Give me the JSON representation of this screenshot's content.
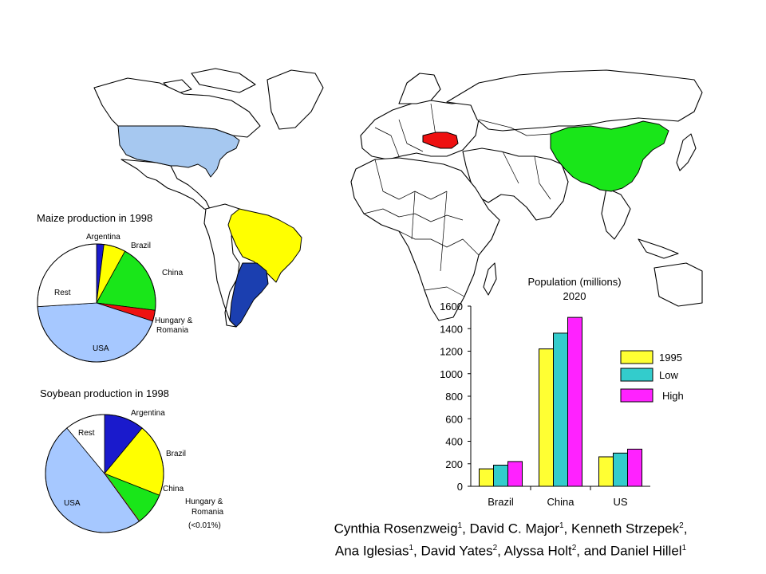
{
  "map": {
    "highlight_colors": {
      "USA": "#a6c8f0",
      "Brazil": "#ffff00",
      "Argentina": "#1b3fb0",
      "China": "#19e619",
      "Hungary & Romania": "#ee1111"
    }
  },
  "chart_data": [
    {
      "type": "pie",
      "title": "Maize production in 1998",
      "slices": [
        {
          "label": "Argentina",
          "value": 2,
          "color": "#1a1acc"
        },
        {
          "label": "Brazil",
          "value": 6,
          "color": "#ffff00"
        },
        {
          "label": "China",
          "value": 19,
          "color": "#19e619"
        },
        {
          "label": "Hungary & Romania",
          "value": 3,
          "color": "#ee1111"
        },
        {
          "label": "USA",
          "value": 44,
          "color": "#a6c8ff"
        },
        {
          "label": "Rest",
          "value": 26,
          "color": "#ffffff"
        }
      ]
    },
    {
      "type": "pie",
      "title": "Soybean production in 1998",
      "slices": [
        {
          "label": "Argentina",
          "value": 11,
          "color": "#1a1acc"
        },
        {
          "label": "Brazil",
          "value": 20,
          "color": "#ffff00"
        },
        {
          "label": "China",
          "value": 9,
          "color": "#19e619"
        },
        {
          "label": "Hungary & Romania (<0.01%)",
          "value": 0,
          "color": "#ee1111"
        },
        {
          "label": "USA",
          "value": 49,
          "color": "#a6c8ff"
        },
        {
          "label": "Rest",
          "value": 11,
          "color": "#ffffff"
        }
      ]
    },
    {
      "type": "bar",
      "title": "Population (millions)",
      "subtitle": "2020",
      "categories": [
        "Brazil",
        "China",
        "US"
      ],
      "ylim": [
        0,
        1600
      ],
      "yticks": [
        0,
        200,
        400,
        600,
        800,
        1000,
        1200,
        1400,
        1600
      ],
      "series": [
        {
          "name": "1995",
          "values": [
            155,
            1220,
            262
          ],
          "color": "#ffff33"
        },
        {
          "name": "Low",
          "values": [
            188,
            1360,
            295
          ],
          "color": "#33cccc"
        },
        {
          "name": "High",
          "values": [
            220,
            1500,
            330
          ],
          "color": "#ff22ff"
        }
      ],
      "legend_position": "right"
    }
  ],
  "credits": {
    "line1": [
      {
        "name": "Cynthia Rosenzweig",
        "sup": "1",
        "sep": ", "
      },
      {
        "name": "David C. Major",
        "sup": "1",
        "sep": ", "
      },
      {
        "name": "Kenneth Strzepek",
        "sup": "2",
        "sep": ","
      }
    ],
    "line2": [
      {
        "name": "Ana Iglesias",
        "sup": "1",
        "sep": ", "
      },
      {
        "name": "David Yates",
        "sup": "2",
        "sep": ", "
      },
      {
        "name": "Alyssa Holt",
        "sup": "2",
        "sep": ", and "
      },
      {
        "name": "Daniel Hillel",
        "sup": "1",
        "sep": ""
      }
    ]
  }
}
